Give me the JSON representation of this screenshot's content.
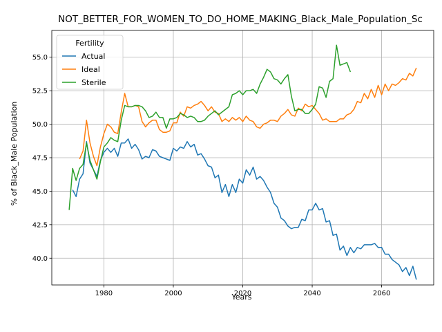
{
  "chart_data": {
    "type": "line",
    "title": "NOT_BETTER_FOR_WOMEN_TO_DO_HOME_MAKING_Black_Male_Population_Sc",
    "xlabel": "Years",
    "ylabel": "% of Black_Male Population",
    "xlim": [
      1965,
      2075
    ],
    "ylim": [
      38,
      57
    ],
    "xticks": [
      1980,
      2000,
      2020,
      2040,
      2060
    ],
    "yticks": [
      40.0,
      42.5,
      45.0,
      47.5,
      50.0,
      52.5,
      55.0
    ],
    "grid": true,
    "legend": {
      "title": "Fertility",
      "placement": "upper-left"
    },
    "series": [
      {
        "name": "Actual",
        "color": "#1f77b4",
        "x": [
          1971,
          1972,
          1973,
          1974,
          1975,
          1976,
          1977,
          1978,
          1979,
          1980,
          1981,
          1982,
          1983,
          1984,
          1985,
          1986,
          1987,
          1988,
          1989,
          1990,
          1991,
          1992,
          1993,
          1994,
          1995,
          1996,
          1997,
          1998,
          1999,
          2000,
          2001,
          2002,
          2003,
          2004,
          2005,
          2006,
          2007,
          2008,
          2009,
          2010,
          2011,
          2012,
          2013,
          2014,
          2015,
          2016,
          2017,
          2018,
          2019,
          2020,
          2021,
          2022,
          2023,
          2024,
          2025,
          2026,
          2027,
          2028,
          2029,
          2030,
          2031,
          2032,
          2033,
          2034,
          2035,
          2036,
          2037,
          2038,
          2039,
          2040,
          2041,
          2042,
          2043,
          2044,
          2045,
          2046,
          2047,
          2048,
          2049,
          2050,
          2051,
          2052,
          2053,
          2054,
          2055,
          2056,
          2057,
          2058,
          2059,
          2060,
          2061,
          2062,
          2063,
          2064,
          2065,
          2066,
          2067,
          2068,
          2069,
          2070
        ],
        "values": [
          45.1,
          44.6,
          45.9,
          46.3,
          48.7,
          47.1,
          46.6,
          46.1,
          47.3,
          47.9,
          48.2,
          47.9,
          48.2,
          47.6,
          48.6,
          48.6,
          48.9,
          48.2,
          48.5,
          48.1,
          47.4,
          47.6,
          47.5,
          48.1,
          48.0,
          47.6,
          47.5,
          47.4,
          47.3,
          48.2,
          48.0,
          48.3,
          48.2,
          48.7,
          48.3,
          48.5,
          47.7,
          47.8,
          47.4,
          46.9,
          46.8,
          46.0,
          46.2,
          44.9,
          45.5,
          44.6,
          45.5,
          44.9,
          45.9,
          45.6,
          46.6,
          46.2,
          46.8,
          45.9,
          46.1,
          45.8,
          45.3,
          44.9,
          44.1,
          43.8,
          43.0,
          42.8,
          42.4,
          42.2,
          42.3,
          42.3,
          42.9,
          42.8,
          43.6,
          43.6,
          44.1,
          43.6,
          43.7,
          42.7,
          42.8,
          41.7,
          41.8,
          40.6,
          40.9,
          40.2,
          40.8,
          40.4,
          40.8,
          40.7,
          41.0,
          41.0,
          41.0,
          41.1,
          40.8,
          40.8,
          40.3,
          40.3,
          39.9,
          39.7,
          39.5,
          39.0,
          39.3,
          38.7,
          39.4,
          38.4
        ]
      },
      {
        "name": "Ideal",
        "color": "#ff7f0e",
        "x": [
          1973,
          1974,
          1975,
          1976,
          1977,
          1978,
          1979,
          1980,
          1981,
          1982,
          1983,
          1984,
          1985,
          1986,
          1987,
          1988,
          1989,
          1990,
          1991,
          1992,
          1993,
          1994,
          1995,
          1996,
          1997,
          1998,
          1999,
          2000,
          2001,
          2002,
          2003,
          2004,
          2005,
          2006,
          2007,
          2008,
          2009,
          2010,
          2011,
          2012,
          2013,
          2014,
          2015,
          2016,
          2017,
          2018,
          2019,
          2020,
          2021,
          2022,
          2023,
          2024,
          2025,
          2026,
          2027,
          2028,
          2029,
          2030,
          2031,
          2032,
          2033,
          2034,
          2035,
          2036,
          2037,
          2038,
          2039,
          2040,
          2041,
          2042,
          2043,
          2044,
          2045,
          2046,
          2047,
          2048,
          2049,
          2050,
          2051,
          2052,
          2053,
          2054,
          2055,
          2056,
          2057,
          2058,
          2059,
          2060,
          2061,
          2062,
          2063,
          2064,
          2065,
          2066,
          2067,
          2068,
          2069,
          2070
        ],
        "values": [
          47.4,
          48.0,
          50.3,
          48.6,
          47.6,
          46.9,
          48.3,
          49.3,
          50.0,
          49.8,
          49.4,
          49.3,
          50.9,
          52.3,
          51.3,
          51.3,
          51.4,
          51.3,
          50.2,
          49.8,
          50.1,
          50.3,
          50.3,
          49.6,
          49.4,
          49.4,
          49.5,
          50.1,
          50.1,
          50.9,
          50.6,
          51.3,
          51.2,
          51.4,
          51.5,
          51.7,
          51.4,
          51.0,
          51.3,
          50.9,
          50.8,
          50.2,
          50.4,
          50.2,
          50.5,
          50.3,
          50.5,
          50.2,
          50.6,
          50.3,
          50.2,
          49.8,
          49.7,
          50.0,
          50.1,
          50.3,
          50.3,
          50.2,
          50.6,
          50.8,
          51.1,
          50.7,
          50.6,
          51.2,
          51.0,
          51.5,
          51.3,
          51.4,
          51.1,
          50.8,
          50.3,
          50.4,
          50.2,
          50.2,
          50.2,
          50.4,
          50.4,
          50.7,
          50.8,
          51.1,
          51.7,
          51.6,
          52.3,
          51.9,
          52.6,
          52.0,
          52.9,
          52.2,
          53.0,
          52.5,
          53.0,
          52.9,
          53.1,
          53.4,
          53.3,
          53.8,
          53.6,
          54.2
        ]
      },
      {
        "name": "Sterile",
        "color": "#2ca02c",
        "x": [
          1970,
          1971,
          1972,
          1973,
          1974,
          1975,
          1976,
          1977,
          1978,
          1979,
          1980,
          1981,
          1982,
          1983,
          1984,
          1985,
          1986,
          1987,
          1988,
          1989,
          1990,
          1991,
          1992,
          1993,
          1994,
          1995,
          1996,
          1997,
          1998,
          1999,
          2000,
          2001,
          2002,
          2003,
          2004,
          2005,
          2006,
          2007,
          2008,
          2009,
          2010,
          2011,
          2012,
          2013,
          2014,
          2015,
          2016,
          2017,
          2018,
          2019,
          2020,
          2021,
          2022,
          2023,
          2024,
          2025,
          2026,
          2027,
          2028,
          2029,
          2030,
          2031,
          2032,
          2033,
          2034,
          2035,
          2036,
          2037,
          2038,
          2039,
          2040,
          2041,
          2042,
          2043,
          2044,
          2045,
          2046,
          2047,
          2048,
          2049,
          2050,
          2051
        ],
        "values": [
          43.6,
          46.7,
          45.8,
          46.7,
          47.0,
          48.6,
          47.3,
          46.6,
          45.9,
          47.2,
          48.3,
          48.6,
          49.0,
          48.8,
          48.7,
          50.3,
          51.4,
          51.3,
          51.3,
          51.4,
          51.4,
          51.3,
          51.0,
          50.5,
          50.6,
          50.9,
          50.5,
          50.5,
          49.7,
          50.4,
          50.4,
          50.5,
          50.8,
          50.7,
          50.5,
          50.6,
          50.5,
          50.2,
          50.2,
          50.3,
          50.6,
          50.8,
          51.0,
          50.7,
          50.9,
          51.1,
          51.3,
          52.2,
          52.3,
          52.5,
          52.2,
          52.5,
          52.5,
          52.6,
          52.3,
          53.0,
          53.5,
          54.1,
          53.9,
          53.4,
          53.3,
          53.0,
          53.4,
          53.7,
          52.1,
          51.0,
          51.1,
          51.1,
          50.8,
          50.8,
          51.1,
          51.5,
          52.8,
          52.7,
          52.0,
          53.2,
          53.4,
          55.9,
          54.4,
          54.5,
          54.6,
          53.9
        ]
      }
    ]
  }
}
